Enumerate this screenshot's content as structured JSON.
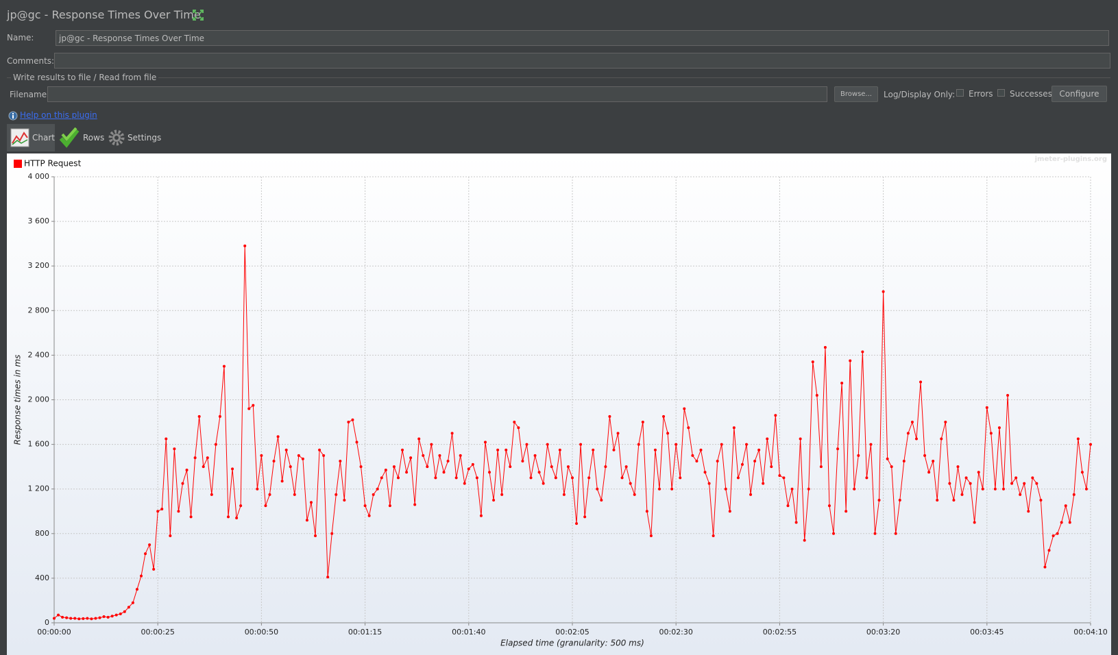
{
  "window": {
    "title": "jp@gc - Response Times Over Time",
    "name_label": "Name:",
    "name_value": "jp@gc - Response Times Over Time",
    "comments_label": "Comments:",
    "file_section": "Write results to file / Read from file",
    "filename_label": "Filename",
    "browse": "Browse...",
    "log_display": "Log/Display Only:",
    "errors": "Errors",
    "successes": "Successes",
    "configure": "Configure",
    "help": "Help on this plugin",
    "tabs": [
      "Chart",
      "Rows",
      "Settings"
    ]
  },
  "chart_data": {
    "type": "line",
    "watermark": "jmeter-plugins.org",
    "y_label": "Response times in ms",
    "x_label": "Elapsed time (granularity: 500 ms)",
    "legend": "top-left",
    "grid": true,
    "xlim": [
      0,
      250
    ],
    "ylim": [
      0,
      4000
    ],
    "xticks": [
      {
        "value": 0,
        "label": "00:00:00"
      },
      {
        "value": 25,
        "label": "00:00:25"
      },
      {
        "value": 50,
        "label": "00:00:50"
      },
      {
        "value": 75,
        "label": "00:01:15"
      },
      {
        "value": 100,
        "label": "00:01:40"
      },
      {
        "value": 125,
        "label": "00:02:05"
      },
      {
        "value": 150,
        "label": "00:02:30"
      },
      {
        "value": 175,
        "label": "00:02:55"
      },
      {
        "value": 200,
        "label": "00:03:20"
      },
      {
        "value": 225,
        "label": "00:03:45"
      },
      {
        "value": 250,
        "label": "00:04:10"
      }
    ],
    "yticks": [
      0,
      400,
      800,
      {
        "value": 1200,
        "label": "1 200"
      },
      {
        "value": 1600,
        "label": "1 600"
      },
      {
        "value": 2000,
        "label": "2 000"
      },
      {
        "value": 2400,
        "label": "2 400"
      },
      {
        "value": 2800,
        "label": "2 800"
      },
      {
        "value": 3200,
        "label": "3 200"
      },
      {
        "value": 3600,
        "label": "3 600"
      },
      {
        "value": 4000,
        "label": "4 000"
      }
    ],
    "x": [
      0,
      1,
      2,
      3,
      4,
      5,
      6,
      7,
      8,
      9,
      10,
      11,
      12,
      13,
      14,
      15,
      16,
      17,
      18,
      19,
      20,
      21,
      22,
      23,
      24,
      25,
      26,
      27,
      28,
      29,
      30,
      31,
      32,
      33,
      34,
      35,
      36,
      37,
      38,
      39,
      40,
      41,
      42,
      43,
      44,
      45,
      46,
      47,
      48,
      49,
      50,
      51,
      52,
      53,
      54,
      55,
      56,
      57,
      58,
      59,
      60,
      61,
      62,
      63,
      64,
      65,
      66,
      67,
      68,
      69,
      70,
      71,
      72,
      73,
      74,
      75,
      76,
      77,
      78,
      79,
      80,
      81,
      82,
      83,
      84,
      85,
      86,
      87,
      88,
      89,
      90,
      91,
      92,
      93,
      94,
      95,
      96,
      97,
      98,
      99,
      100,
      101,
      102,
      103,
      104,
      105,
      106,
      107,
      108,
      109,
      110,
      111,
      112,
      113,
      114,
      115,
      116,
      117,
      118,
      119,
      120,
      121,
      122,
      123,
      124,
      125,
      126,
      127,
      128,
      129,
      130,
      131,
      132,
      133,
      134,
      135,
      136,
      137,
      138,
      139,
      140,
      141,
      142,
      143,
      144,
      145,
      146,
      147,
      148,
      149,
      150,
      151,
      152,
      153,
      154,
      155,
      156,
      157,
      158,
      159,
      160,
      161,
      162,
      163,
      164,
      165,
      166,
      167,
      168,
      169,
      170,
      171,
      172,
      173,
      174,
      175,
      176,
      177,
      178,
      179,
      180,
      181,
      182,
      183,
      184,
      185,
      186,
      187,
      188,
      189,
      190,
      191,
      192,
      193,
      194,
      195,
      196,
      197,
      198,
      199,
      200,
      201,
      202,
      203,
      204,
      205,
      206,
      207,
      208,
      209,
      210,
      211,
      212,
      213,
      214,
      215,
      216,
      217,
      218,
      219,
      220,
      221,
      222,
      223,
      224,
      225,
      226,
      227,
      228,
      229,
      230,
      231,
      232,
      233,
      234,
      235,
      236,
      237,
      238,
      239,
      240,
      241,
      242,
      243,
      244,
      245,
      246,
      247,
      248,
      249,
      250
    ],
    "series": [
      {
        "name": "HTTP Request",
        "color": "#ff0000",
        "values": [
          40,
          70,
          50,
          45,
          40,
          40,
          35,
          38,
          40,
          35,
          40,
          45,
          55,
          50,
          60,
          70,
          80,
          100,
          140,
          180,
          300,
          420,
          620,
          700,
          480,
          1000,
          1020,
          1650,
          780,
          1560,
          1000,
          1250,
          1370,
          950,
          1480,
          1850,
          1400,
          1480,
          1150,
          1600,
          1850,
          2300,
          950,
          1380,
          940,
          1050,
          3380,
          1920,
          1950,
          1200,
          1500,
          1050,
          1150,
          1450,
          1670,
          1270,
          1550,
          1400,
          1150,
          1500,
          1470,
          920,
          1080,
          780,
          1550,
          1500,
          410,
          800,
          1150,
          1450,
          1100,
          1800,
          1820,
          1620,
          1400,
          1050,
          960,
          1150,
          1200,
          1300,
          1370,
          1050,
          1400,
          1300,
          1550,
          1350,
          1480,
          1060,
          1650,
          1500,
          1400,
          1600,
          1300,
          1500,
          1350,
          1450,
          1700,
          1300,
          1500,
          1250,
          1380,
          1420,
          1300,
          960,
          1620,
          1350,
          1100,
          1550,
          1150,
          1550,
          1400,
          1800,
          1750,
          1450,
          1600,
          1300,
          1500,
          1350,
          1250,
          1600,
          1400,
          1300,
          1550,
          1150,
          1400,
          1300,
          890,
          1600,
          950,
          1300,
          1550,
          1200,
          1100,
          1400,
          1850,
          1550,
          1700,
          1300,
          1400,
          1250,
          1150,
          1600,
          1800,
          1000,
          780,
          1550,
          1200,
          1850,
          1700,
          1200,
          1600,
          1300,
          1920,
          1750,
          1500,
          1450,
          1550,
          1350,
          1250,
          780,
          1450,
          1600,
          1200,
          1000,
          1750,
          1300,
          1420,
          1600,
          1150,
          1450,
          1550,
          1250,
          1650,
          1400,
          1860,
          1320,
          1300,
          1050,
          1200,
          900,
          1650,
          740,
          1200,
          2340,
          2040,
          1400,
          2470,
          1050,
          800,
          1560,
          2150,
          1000,
          2350,
          1200,
          1500,
          2430,
          1300,
          1600,
          800,
          1100,
          2970,
          1470,
          1400,
          800,
          1100,
          1450,
          1700,
          1800,
          1650,
          2160,
          1500,
          1350,
          1450,
          1100,
          1650,
          1800,
          1250,
          1100,
          1400,
          1150,
          1300,
          1250,
          900,
          1350,
          1200,
          1930,
          1700,
          1200,
          1750,
          1200,
          2040,
          1250,
          1300,
          1150,
          1250,
          1000,
          1300,
          1250,
          1100,
          500,
          650,
          780,
          800,
          900,
          1050,
          900,
          1150,
          1650,
          1350,
          1200,
          1600
        ]
      }
    ]
  }
}
